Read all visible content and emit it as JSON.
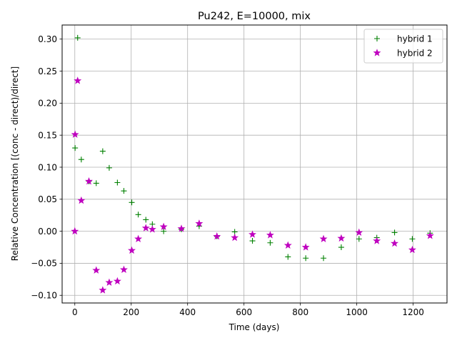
{
  "chart_data": {
    "type": "scatter",
    "title": "Pu242, E=10000, mix",
    "xlabel": "Time (days)",
    "ylabel": "Relative Concentration [(conc - direct)/direct]",
    "xlim": [
      -45,
      1320
    ],
    "ylim": [
      -0.112,
      0.322
    ],
    "xticks": [
      0,
      200,
      400,
      600,
      800,
      1000,
      1200
    ],
    "xtick_labels": [
      "0",
      "200",
      "400",
      "600",
      "800",
      "1000",
      "1200"
    ],
    "yticks": [
      -0.1,
      -0.05,
      0.0,
      0.05,
      0.1,
      0.15,
      0.2,
      0.25,
      0.3
    ],
    "ytick_labels": [
      "−0.10",
      "−0.05",
      "0.00",
      "0.05",
      "0.10",
      "0.15",
      "0.20",
      "0.25",
      "0.30"
    ],
    "grid": true,
    "legend_position": "top-right",
    "series": [
      {
        "name": "hybrid 1",
        "marker": "plus",
        "color": "#008000",
        "points": [
          [
            1,
            0.13
          ],
          [
            10,
            0.302
          ],
          [
            23,
            0.112
          ],
          [
            50,
            0.078
          ],
          [
            76,
            0.075
          ],
          [
            99,
            0.125
          ],
          [
            122,
            0.099
          ],
          [
            151,
            0.076
          ],
          [
            174,
            0.063
          ],
          [
            202,
            0.045
          ],
          [
            225,
            0.026
          ],
          [
            252,
            0.018
          ],
          [
            275,
            0.011
          ],
          [
            315,
            0.0
          ],
          [
            378,
            0.003
          ],
          [
            441,
            0.008
          ],
          [
            504,
            -0.008
          ],
          [
            567,
            -0.001
          ],
          [
            630,
            -0.015
          ],
          [
            693,
            -0.018
          ],
          [
            756,
            -0.04
          ],
          [
            819,
            -0.042
          ],
          [
            882,
            -0.042
          ],
          [
            945,
            -0.025
          ],
          [
            1008,
            -0.012
          ],
          [
            1071,
            -0.01
          ],
          [
            1134,
            -0.002
          ],
          [
            1197,
            -0.012
          ],
          [
            1260,
            -0.003
          ]
        ]
      },
      {
        "name": "hybrid 2",
        "marker": "star",
        "color": "#bf00bf",
        "points": [
          [
            0,
            0.0
          ],
          [
            1,
            0.151
          ],
          [
            10,
            0.235
          ],
          [
            23,
            0.048
          ],
          [
            50,
            0.078
          ],
          [
            76,
            -0.061
          ],
          [
            99,
            -0.092
          ],
          [
            122,
            -0.08
          ],
          [
            151,
            -0.078
          ],
          [
            174,
            -0.06
          ],
          [
            202,
            -0.03
          ],
          [
            225,
            -0.012
          ],
          [
            252,
            0.005
          ],
          [
            275,
            0.003
          ],
          [
            315,
            0.007
          ],
          [
            378,
            0.004
          ],
          [
            441,
            0.012
          ],
          [
            504,
            -0.008
          ],
          [
            567,
            -0.01
          ],
          [
            630,
            -0.005
          ],
          [
            693,
            -0.006
          ],
          [
            756,
            -0.022
          ],
          [
            819,
            -0.025
          ],
          [
            882,
            -0.012
          ],
          [
            945,
            -0.011
          ],
          [
            1008,
            -0.002
          ],
          [
            1071,
            -0.015
          ],
          [
            1134,
            -0.019
          ],
          [
            1197,
            -0.029
          ],
          [
            1260,
            -0.007
          ]
        ]
      }
    ]
  }
}
